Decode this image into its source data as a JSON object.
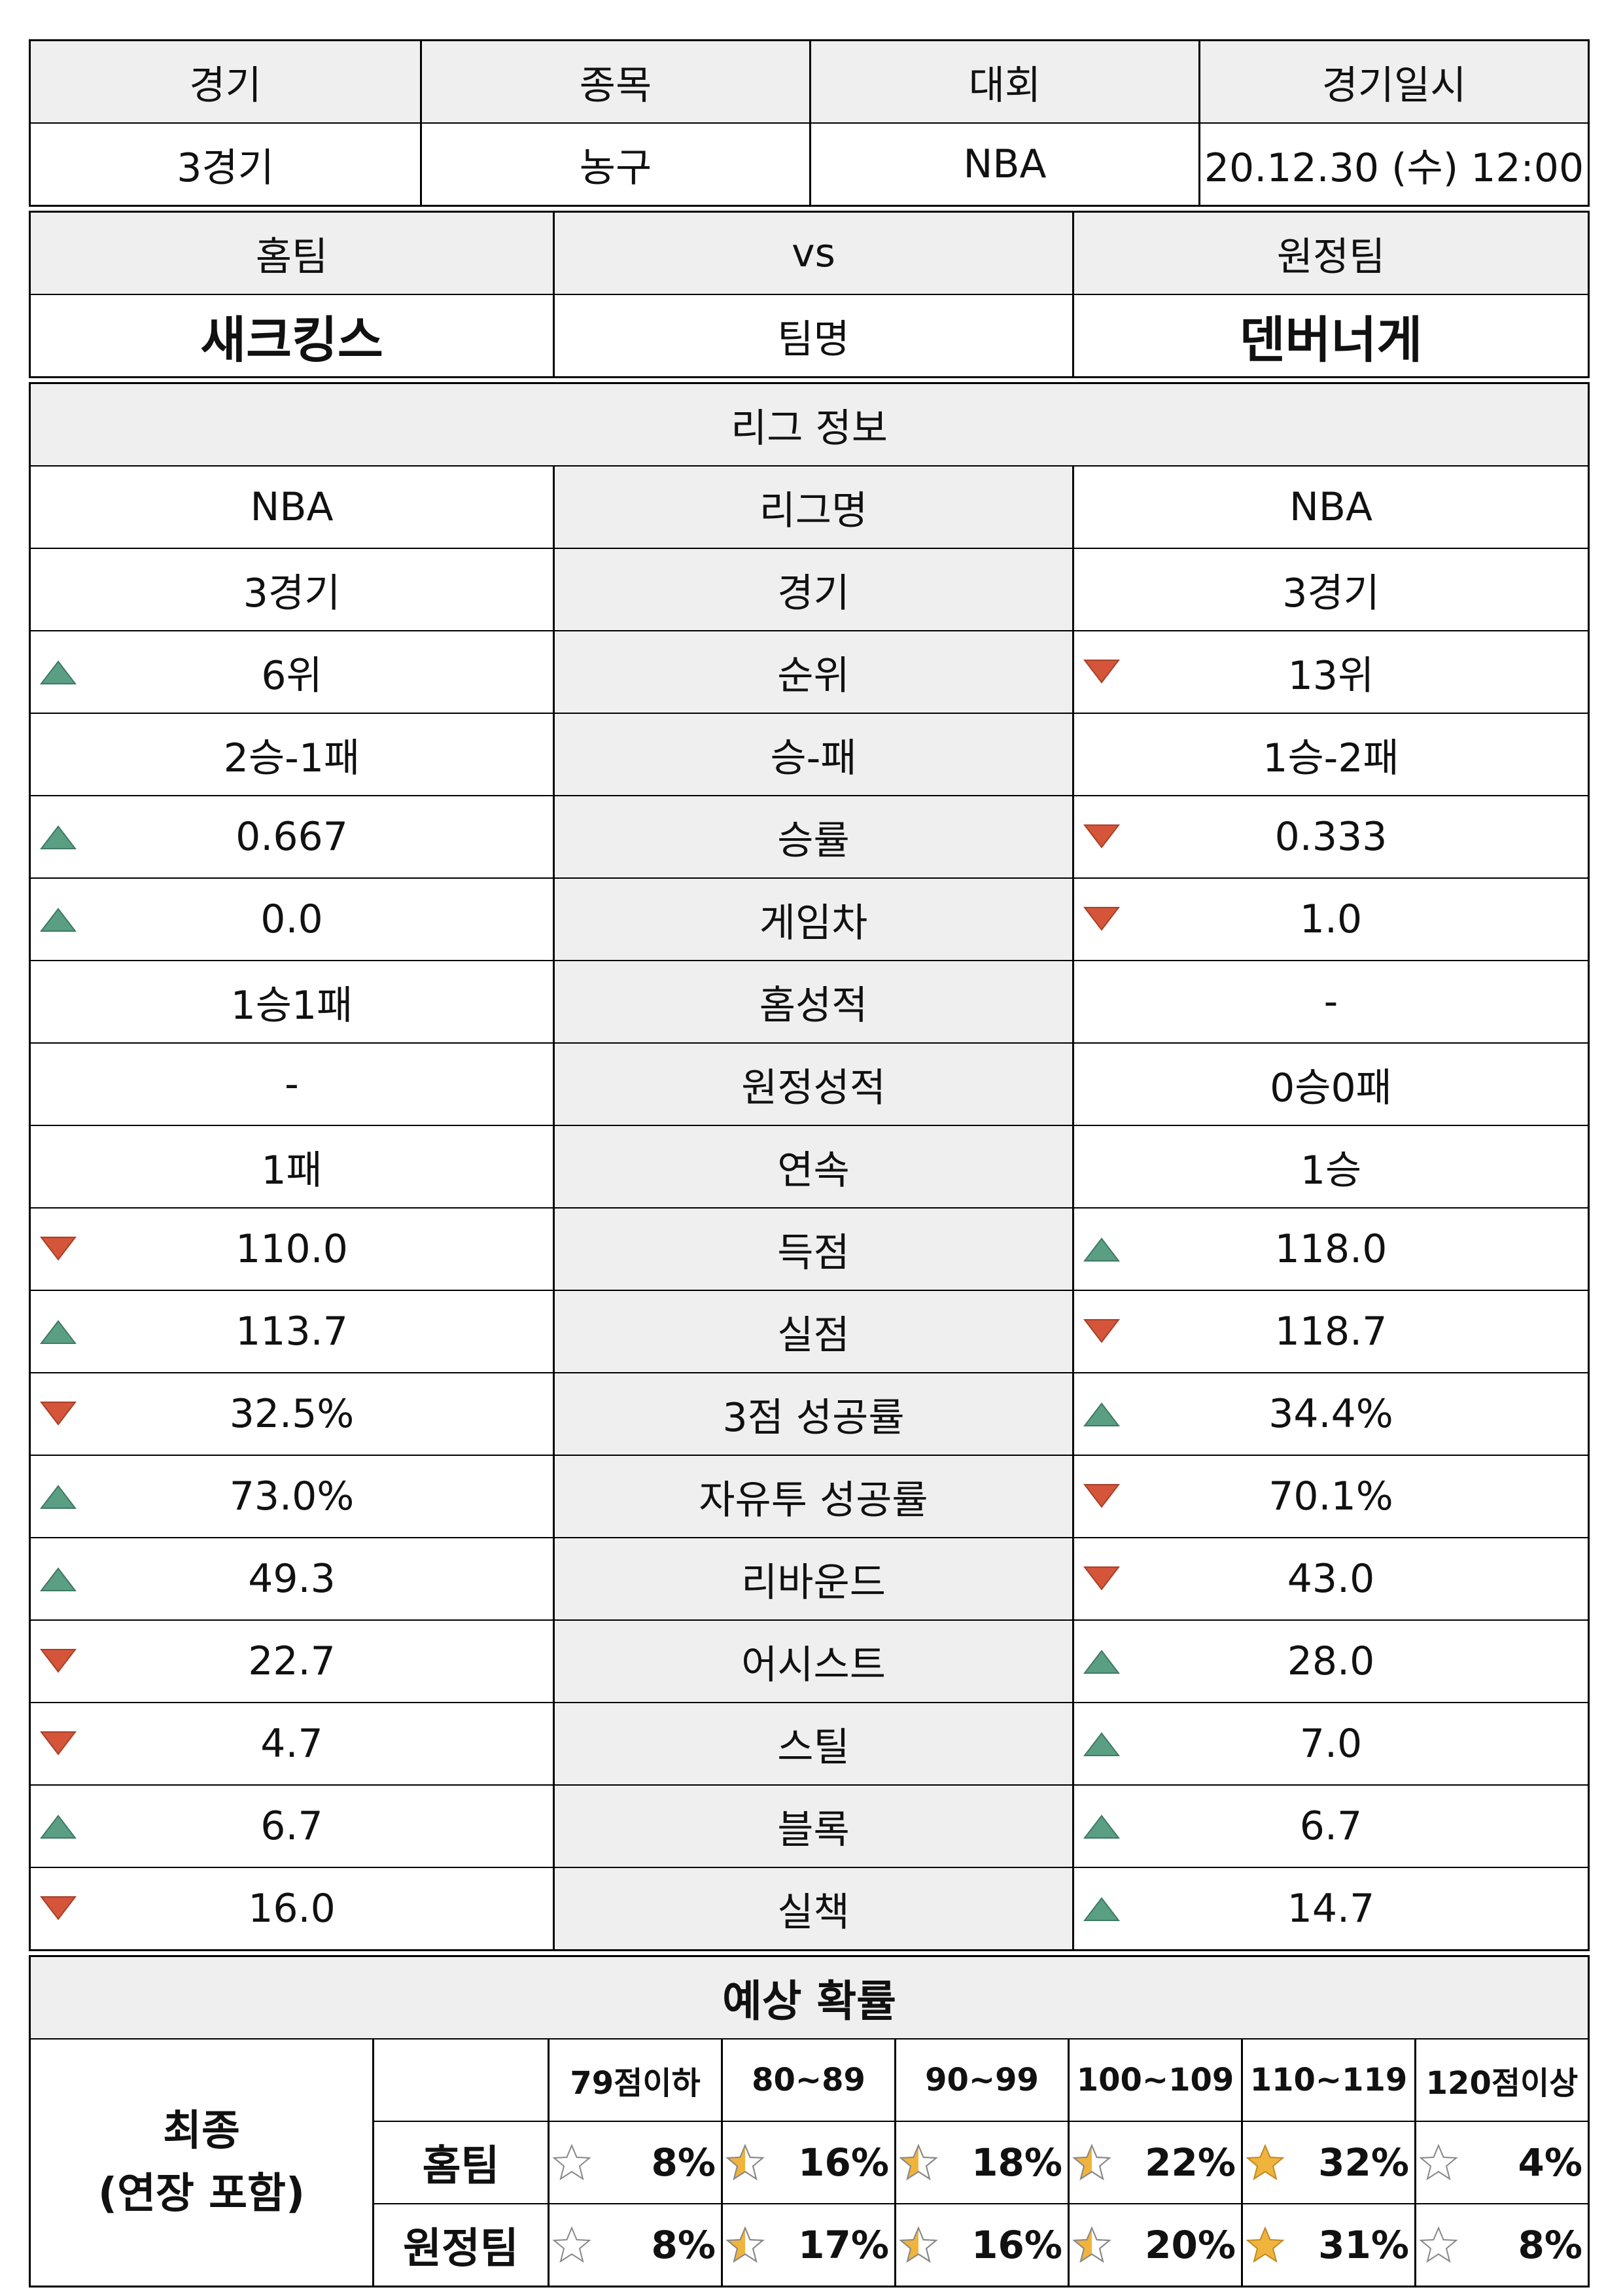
{
  "match_info": {
    "headers": [
      "경기",
      "종목",
      "대회",
      "경기일시"
    ],
    "values": [
      "3경기",
      "농구",
      "NBA",
      "20.12.30 (수) 12:00"
    ]
  },
  "teams": {
    "home_label": "홈팀",
    "vs_label": "vs",
    "away_label": "원정팀",
    "home_name": "새크킹스",
    "team_name_label": "팀명",
    "away_name": "덴버너게"
  },
  "league": {
    "title": "리그 정보",
    "rows": [
      {
        "label": "리그명",
        "home": "NBA",
        "away": "NBA",
        "home_trend": "",
        "away_trend": ""
      },
      {
        "label": "경기",
        "home": "3경기",
        "away": "3경기",
        "home_trend": "",
        "away_trend": ""
      },
      {
        "label": "순위",
        "home": "6위",
        "away": "13위",
        "home_trend": "up",
        "away_trend": "down"
      },
      {
        "label": "승-패",
        "home": "2승-1패",
        "away": "1승-2패",
        "home_trend": "",
        "away_trend": ""
      },
      {
        "label": "승률",
        "home": "0.667",
        "away": "0.333",
        "home_trend": "up",
        "away_trend": "down"
      },
      {
        "label": "게임차",
        "home": "0.0",
        "away": "1.0",
        "home_trend": "up",
        "away_trend": "down"
      },
      {
        "label": "홈성적",
        "home": "1승1패",
        "away": "-",
        "home_trend": "",
        "away_trend": ""
      },
      {
        "label": "원정성적",
        "home": "-",
        "away": "0승0패",
        "home_trend": "",
        "away_trend": ""
      },
      {
        "label": "연속",
        "home": "1패",
        "away": "1승",
        "home_trend": "",
        "away_trend": ""
      },
      {
        "label": "득점",
        "home": "110.0",
        "away": "118.0",
        "home_trend": "down",
        "away_trend": "up"
      },
      {
        "label": "실점",
        "home": "113.7",
        "away": "118.7",
        "home_trend": "up",
        "away_trend": "down"
      },
      {
        "label": "3점 성공률",
        "home": "32.5%",
        "away": "34.4%",
        "home_trend": "down",
        "away_trend": "up"
      },
      {
        "label": "자유투 성공률",
        "home": "73.0%",
        "away": "70.1%",
        "home_trend": "up",
        "away_trend": "down"
      },
      {
        "label": "리바운드",
        "home": "49.3",
        "away": "43.0",
        "home_trend": "up",
        "away_trend": "down"
      },
      {
        "label": "어시스트",
        "home": "22.7",
        "away": "28.0",
        "home_trend": "down",
        "away_trend": "up"
      },
      {
        "label": "스틸",
        "home": "4.7",
        "away": "7.0",
        "home_trend": "down",
        "away_trend": "up"
      },
      {
        "label": "블록",
        "home": "6.7",
        "away": "6.7",
        "home_trend": "up",
        "away_trend": "up"
      },
      {
        "label": "실책",
        "home": "16.0",
        "away": "14.7",
        "home_trend": "down",
        "away_trend": "up"
      }
    ]
  },
  "probability": {
    "title": "예상 확률",
    "left_label_line1": "최종",
    "left_label_line2": "(연장 포함)",
    "columns": [
      "79점이하",
      "80~89",
      "90~99",
      "100~109",
      "110~119",
      "120점이상"
    ],
    "rows": [
      {
        "label": "홈팀",
        "values": [
          "8%",
          "16%",
          "18%",
          "22%",
          "32%",
          "4%"
        ],
        "stars": [
          "empty",
          "quarter",
          "quarter",
          "quarter",
          "full",
          "empty"
        ]
      },
      {
        "label": "원정팀",
        "values": [
          "8%",
          "17%",
          "16%",
          "20%",
          "31%",
          "8%"
        ],
        "stars": [
          "empty",
          "quarter",
          "quarter",
          "quarter",
          "full",
          "empty"
        ]
      }
    ]
  },
  "colors": {
    "up": "#5a9e84",
    "down": "#d4553a",
    "star_fill": "#f0b43c",
    "header_bg": "#efefef"
  }
}
